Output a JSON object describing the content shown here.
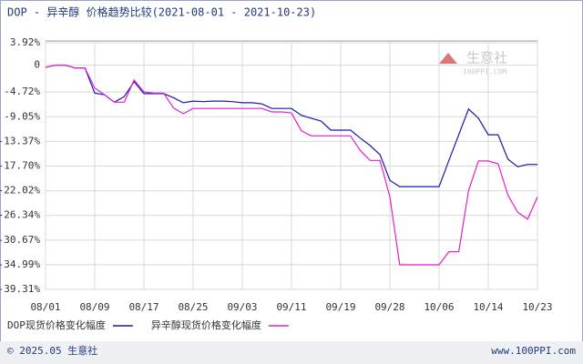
{
  "chart_data": {
    "type": "line",
    "title": "DOP - 异辛醇 价格趋势比较(2021-08-01 - 2021-10-23)",
    "categories": [
      "08/01",
      null,
      null,
      null,
      null,
      "08/09",
      null,
      null,
      null,
      null,
      "08/17",
      null,
      null,
      null,
      null,
      "08/25",
      null,
      null,
      null,
      null,
      "09/03",
      null,
      null,
      null,
      null,
      "09/11",
      null,
      null,
      null,
      null,
      "09/19",
      null,
      null,
      null,
      null,
      "09/28",
      null,
      null,
      null,
      null,
      "10/06",
      null,
      null,
      null,
      null,
      "10/14",
      null,
      null,
      null,
      null,
      "10/23"
    ],
    "series": [
      {
        "name": "DOP现货价格变化幅度",
        "color": "#1a1aaa",
        "values": [
          -0.4,
          0,
          0,
          -0.5,
          -0.5,
          -4.9,
          -5.2,
          -6.5,
          -5.5,
          -2.9,
          -5.0,
          -5.0,
          -5.0,
          -5.7,
          -6.6,
          -6.3,
          -6.4,
          -6.3,
          -6.3,
          -6.4,
          -6.6,
          -6.6,
          -6.8,
          -7.6,
          -7.6,
          -7.6,
          -8.8,
          -9.3,
          -9.8,
          -11.4,
          -11.4,
          -11.4,
          -12.8,
          -14.1,
          -15.7,
          -20.2,
          -21.3,
          -21.3,
          -21.3,
          -21.3,
          -21.3,
          -16.7,
          -12.2,
          -7.7,
          -9.3,
          -12.2,
          -12.2,
          -16.5,
          -17.8,
          -17.4,
          -17.4
        ]
      },
      {
        "name": "异辛醇现货价格变化幅度",
        "color": "#e020d0",
        "values": [
          -0.4,
          0,
          0,
          -0.5,
          -0.5,
          -4.0,
          -5.2,
          -6.5,
          -6.5,
          -2.6,
          -4.7,
          -4.9,
          -4.9,
          -7.5,
          -8.5,
          -7.6,
          -7.6,
          -7.6,
          -7.6,
          -7.6,
          -7.6,
          -7.6,
          -7.6,
          -8.2,
          -8.2,
          -8.4,
          -11.5,
          -12.4,
          -12.4,
          -12.4,
          -12.4,
          -12.4,
          -15.0,
          -16.7,
          -16.7,
          -23.1,
          -35.0,
          -35.0,
          -35.0,
          -35.0,
          -35.0,
          -32.7,
          -32.7,
          -22.0,
          -16.8,
          -16.8,
          -17.3,
          -22.8,
          -25.8,
          -27.0,
          -23.1
        ]
      }
    ],
    "ylim": [
      -39.31,
      3.92
    ],
    "yticks": [
      {
        "value": 3.92,
        "label": "3.92%"
      },
      0,
      {
        "value": -4.72,
        "label": "-4.72%"
      },
      {
        "value": -9.05,
        "label": "-9.05%"
      },
      {
        "value": -13.37,
        "label": "-13.37%"
      },
      {
        "value": -17.7,
        "label": "-17.70%"
      },
      {
        "value": -22.02,
        "label": "-22.02%"
      },
      {
        "value": -26.34,
        "label": "-26.34%"
      },
      {
        "value": -30.67,
        "label": "-30.67%"
      },
      {
        "value": -34.99,
        "label": "-34.99%"
      },
      {
        "value": -39.31,
        "label": "-39.31%"
      }
    ],
    "grid": true,
    "watermark": [
      "生意社",
      "100PPI.COM"
    ],
    "footer_left": "© 2025.05 生意社",
    "footer_right": "www.100PPI.com"
  }
}
